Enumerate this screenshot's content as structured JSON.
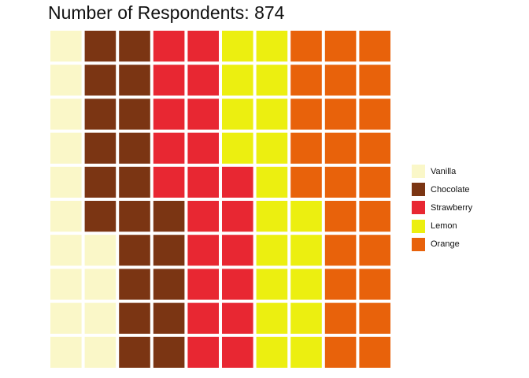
{
  "chart_data": {
    "type": "waffle",
    "title": "Number of Respondents: 874",
    "grid": {
      "rows": 10,
      "cols": 10
    },
    "legend_position": "right",
    "series": [
      {
        "name": "Vanilla",
        "value": 14,
        "color": "#FAF7C8"
      },
      {
        "name": "Chocolate",
        "value": 21,
        "color": "#7B3513"
      },
      {
        "name": "Strawberry",
        "value": 21,
        "color": "#E82732"
      },
      {
        "name": "Lemon",
        "value": 19,
        "color": "#ECEF10"
      },
      {
        "name": "Orange",
        "value": 25,
        "color": "#E8620B"
      }
    ]
  }
}
